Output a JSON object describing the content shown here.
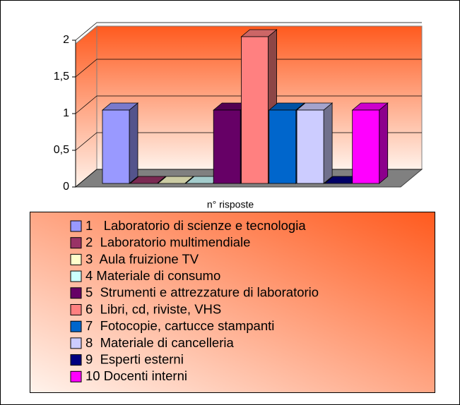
{
  "chart_data": {
    "type": "bar3d",
    "categories": [
      "n° risposte"
    ],
    "series": [
      {
        "name": "1   Laboratorio di scienze e tecnologia",
        "color": "#9999ff",
        "values": [
          1
        ]
      },
      {
        "name": "2  Laboratorio multimendiale",
        "color": "#993366",
        "values": [
          0
        ]
      },
      {
        "name": "3  Aula fruizione TV",
        "color": "#ffffcc",
        "values": [
          0
        ]
      },
      {
        "name": "4 Materiale di consumo",
        "color": "#ccffff",
        "values": [
          0
        ]
      },
      {
        "name": "5  Strumenti e attrezzature di laboratorio",
        "color": "#660066",
        "values": [
          1
        ]
      },
      {
        "name": "6  Libri, cd, riviste, VHS",
        "color": "#ff8080",
        "values": [
          2
        ]
      },
      {
        "name": "7  Fotocopie, cartucce stampanti",
        "color": "#0066cc",
        "values": [
          1
        ]
      },
      {
        "name": "8  Materiale di cancelleria",
        "color": "#ccccff",
        "values": [
          1
        ]
      },
      {
        "name": "9  Esperti esterni",
        "color": "#000080",
        "values": [
          0
        ]
      },
      {
        "name": "10 Docenti interni",
        "color": "#ff00ff",
        "values": [
          1
        ]
      }
    ],
    "ylim": [
      0,
      2
    ],
    "yticks": [
      0,
      {
        "value": 0.5,
        "label": "0,5"
      },
      1,
      {
        "value": 1.5,
        "label": "1,5"
      },
      2
    ],
    "grid": true
  }
}
